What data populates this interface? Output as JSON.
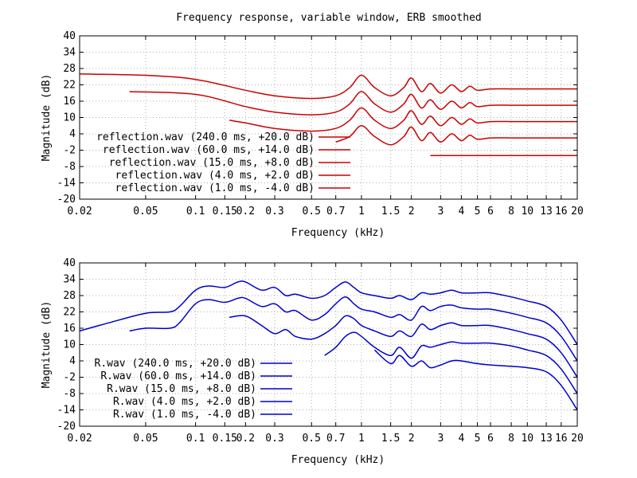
{
  "figure_title": "Frequency response, variable window, ERB smoothed",
  "chart_data": [
    {
      "type": "line",
      "title": "Frequency response, variable window, ERB smoothed",
      "xlabel": "Frequency (kHz)",
      "ylabel": "Magnitude (dB)",
      "xscale": "log",
      "xlim": [
        0.02,
        20
      ],
      "ylim": [
        -20,
        40
      ],
      "xticks": [
        0.02,
        0.05,
        0.1,
        0.15,
        0.2,
        0.3,
        0.5,
        0.7,
        1,
        1.5,
        2,
        3,
        4,
        5,
        6,
        8,
        10,
        13,
        16,
        20
      ],
      "xtick_labels": [
        "0.02",
        "0.05",
        "0.1",
        "0.15",
        "0.2",
        "0.3",
        "0.5",
        "0.7",
        "1",
        "1.5",
        "2",
        "3",
        "4",
        "5",
        "6",
        "8",
        "10",
        "13",
        "16",
        "20"
      ],
      "yticks": [
        40,
        34,
        28,
        22,
        16,
        10,
        4,
        -2,
        -8,
        -14,
        -20
      ],
      "ytick_labels": [
        "40",
        "34",
        "28",
        "22",
        "16",
        "10",
        "4",
        "-2",
        "-8",
        "-14",
        "-20"
      ],
      "grid": true,
      "legend_position": "left",
      "color": "#cc0000",
      "series": [
        {
          "name": "reflection.wav (240.0 ms, +20.0 dB)",
          "x": [
            0.02,
            0.05,
            0.1,
            0.2,
            0.3,
            0.5,
            0.7,
            0.85,
            1,
            1.2,
            1.5,
            1.8,
            2,
            2.3,
            2.6,
            3,
            3.5,
            4,
            4.5,
            5,
            6,
            8,
            10,
            13,
            16,
            20
          ],
          "y": [
            26,
            25.5,
            24,
            20,
            18,
            17,
            18,
            21,
            25.5,
            21,
            18,
            21,
            24.5,
            19.5,
            22.5,
            19,
            22,
            19.5,
            21.5,
            20,
            20.5,
            20.5,
            20.5,
            20.5,
            20.5,
            20.5
          ]
        },
        {
          "name": "reflection.wav (60.0 ms, +14.0 dB)",
          "x": [
            0.04,
            0.1,
            0.2,
            0.3,
            0.5,
            0.7,
            0.85,
            1,
            1.2,
            1.5,
            1.8,
            2,
            2.3,
            2.6,
            3,
            3.5,
            4,
            4.5,
            5,
            6,
            8,
            10,
            13,
            16,
            20
          ],
          "y": [
            19.5,
            18.5,
            14,
            12,
            11,
            12,
            15,
            19.5,
            15,
            12,
            15,
            18.5,
            13.5,
            16.5,
            13,
            16,
            13.5,
            15.5,
            14,
            14.5,
            14.5,
            14.5,
            14.5,
            14.5,
            14.5
          ]
        },
        {
          "name": "reflection.wav (15.0 ms, +8.0 dB)",
          "x": [
            0.16,
            0.2,
            0.3,
            0.5,
            0.7,
            0.85,
            1,
            1.2,
            1.5,
            1.8,
            2,
            2.3,
            2.6,
            3,
            3.5,
            4,
            4.5,
            5,
            6,
            8,
            10,
            13,
            16,
            20
          ],
          "y": [
            9,
            8,
            6,
            5,
            6,
            9,
            13.5,
            9,
            6,
            9,
            12.5,
            7.5,
            10.5,
            7,
            10,
            7.5,
            9.5,
            8,
            8.5,
            8.5,
            8.5,
            8.5,
            8.5,
            8.5
          ]
        },
        {
          "name": "reflection.wav (4.0 ms, +2.0 dB)",
          "x": [
            0.7,
            0.85,
            1,
            1.2,
            1.5,
            1.8,
            2,
            2.3,
            2.6,
            3,
            3.5,
            4,
            4.5,
            5,
            6,
            8,
            10,
            13,
            16,
            20
          ],
          "y": [
            1,
            3,
            7,
            3,
            0,
            3,
            6.5,
            1.5,
            4.5,
            1,
            4,
            1.5,
            3.5,
            2,
            2.5,
            2.5,
            2.5,
            2.5,
            2.5,
            2.5
          ]
        },
        {
          "name": "reflection.wav (1.0 ms, -4.0 dB)",
          "x": [
            2.6,
            5,
            10,
            20
          ],
          "y": [
            -4,
            -4,
            -4,
            -4
          ]
        }
      ]
    },
    {
      "type": "line",
      "xlabel": "Frequency (kHz)",
      "ylabel": "Magnitude (dB)",
      "xscale": "log",
      "xlim": [
        0.02,
        20
      ],
      "ylim": [
        -20,
        40
      ],
      "xticks": [
        0.02,
        0.05,
        0.1,
        0.15,
        0.2,
        0.3,
        0.5,
        0.7,
        1,
        1.5,
        2,
        3,
        4,
        5,
        6,
        8,
        10,
        13,
        16,
        20
      ],
      "xtick_labels": [
        "0.02",
        "0.05",
        "0.1",
        "0.15",
        "0.2",
        "0.3",
        "0.5",
        "0.7",
        "1",
        "1.5",
        "2",
        "3",
        "4",
        "5",
        "6",
        "8",
        "10",
        "13",
        "16",
        "20"
      ],
      "yticks": [
        40,
        34,
        28,
        22,
        16,
        10,
        4,
        -2,
        -8,
        -14,
        -20
      ],
      "ytick_labels": [
        "40",
        "34",
        "28",
        "22",
        "16",
        "10",
        "4",
        "-2",
        "-8",
        "-14",
        "-20"
      ],
      "grid": true,
      "legend_position": "left",
      "color": "#0000cc",
      "series": [
        {
          "name": "R.wav (240.0 ms, +20.0 dB)",
          "x": [
            0.02,
            0.03,
            0.05,
            0.07,
            0.08,
            0.1,
            0.12,
            0.15,
            0.18,
            0.2,
            0.25,
            0.3,
            0.35,
            0.4,
            0.5,
            0.6,
            0.7,
            0.8,
            0.9,
            1,
            1.2,
            1.5,
            1.7,
            2,
            2.3,
            2.6,
            3,
            3.5,
            4,
            5,
            6,
            8,
            10,
            13,
            16,
            20
          ],
          "y": [
            15,
            18,
            21.5,
            22,
            24,
            30,
            31.5,
            31,
            33,
            33,
            30,
            31,
            28,
            28.5,
            27,
            28,
            31,
            33,
            31,
            29,
            28,
            27,
            28,
            26.5,
            29,
            28.5,
            29,
            30,
            29,
            29,
            29,
            27.5,
            26,
            24,
            19,
            10
          ]
        },
        {
          "name": "R.wav (60.0 ms, +14.0 dB)",
          "x": [
            0.04,
            0.05,
            0.07,
            0.08,
            0.1,
            0.12,
            0.15,
            0.18,
            0.2,
            0.25,
            0.3,
            0.35,
            0.4,
            0.5,
            0.6,
            0.7,
            0.8,
            0.9,
            1,
            1.2,
            1.5,
            1.7,
            2,
            2.3,
            2.6,
            3,
            3.5,
            4,
            5,
            6,
            8,
            10,
            13,
            16,
            20
          ],
          "y": [
            15,
            16,
            16,
            18,
            25,
            26.5,
            25.5,
            27,
            27,
            24,
            25,
            22,
            22.5,
            19,
            21,
            25,
            27.5,
            25,
            23,
            22,
            20,
            21,
            19,
            24,
            22.5,
            24,
            24.5,
            23.5,
            23,
            23,
            21.5,
            20,
            18,
            13,
            4
          ]
        },
        {
          "name": "R.wav (15.0 ms, +8.0 dB)",
          "x": [
            0.16,
            0.2,
            0.25,
            0.3,
            0.35,
            0.4,
            0.5,
            0.6,
            0.7,
            0.8,
            0.9,
            1,
            1.2,
            1.5,
            1.7,
            2,
            2.3,
            2.6,
            3,
            3.5,
            4,
            5,
            6,
            8,
            10,
            13,
            16,
            20
          ],
          "y": [
            20,
            20.5,
            17,
            14,
            15.5,
            13,
            12,
            14,
            17,
            20.5,
            19.5,
            17,
            15,
            13,
            15,
            13,
            17.5,
            15.5,
            17,
            18,
            17,
            17,
            17,
            15.5,
            14,
            12,
            7,
            -2
          ]
        },
        {
          "name": "R.wav (4.0 ms, +2.0 dB)",
          "x": [
            0.6,
            0.7,
            0.8,
            0.9,
            1,
            1.2,
            1.5,
            1.7,
            2,
            2.3,
            2.6,
            3,
            3.5,
            4,
            5,
            6,
            8,
            10,
            13,
            16,
            20
          ],
          "y": [
            6,
            9,
            13,
            14.5,
            13,
            9,
            6,
            9,
            5,
            9.5,
            9,
            10,
            11,
            10.5,
            10.5,
            10.5,
            9.5,
            8,
            6,
            1,
            -8
          ]
        },
        {
          "name": "R.wav (1.0 ms, -4.0 dB)",
          "x": [
            1.2,
            1.5,
            1.7,
            2,
            2.3,
            2.6,
            3,
            3.5,
            4,
            5,
            6,
            8,
            10,
            13,
            16,
            20
          ],
          "y": [
            8,
            3,
            6,
            2,
            4,
            1.5,
            2.5,
            4,
            4,
            3,
            2.5,
            2,
            1.5,
            0,
            -5,
            -14
          ]
        }
      ]
    }
  ]
}
